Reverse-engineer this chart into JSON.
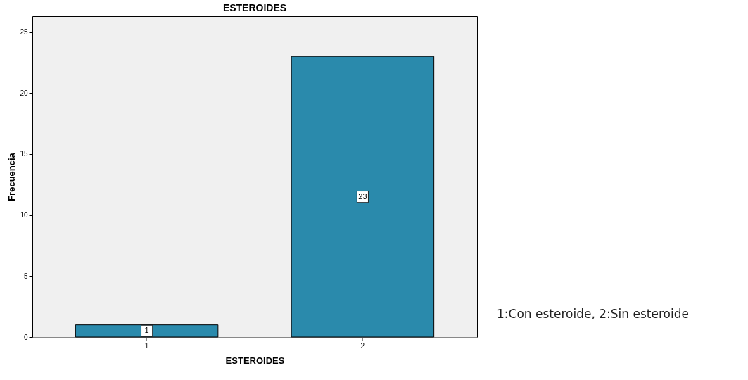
{
  "chart_data": {
    "type": "bar",
    "title": "ESTEROIDES",
    "xlabel": "ESTEROIDES",
    "ylabel": "Frecuencia",
    "categories": [
      "1",
      "2"
    ],
    "series": [
      {
        "color": "#2a8aac",
        "values": [
          1,
          23
        ]
      }
    ],
    "ylim": [
      0,
      26.3
    ],
    "yticks": [
      0,
      5,
      10,
      15,
      20,
      25
    ],
    "grid": false,
    "data_labels": true,
    "annotations": [
      "1:Con esteroide, 2:Sin esteroide"
    ]
  }
}
